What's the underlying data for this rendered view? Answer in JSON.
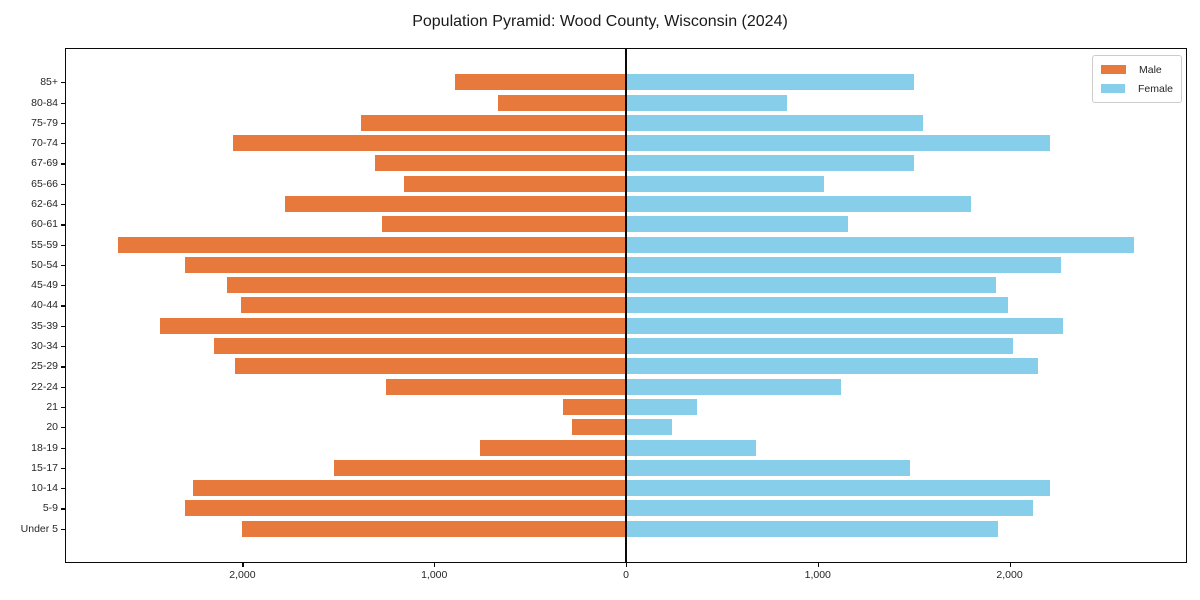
{
  "title": "Population Pyramid: Wood County, Wisconsin (2024)",
  "legend": {
    "male_label": "Male",
    "female_label": "Female"
  },
  "colors": {
    "male": "#e8793c",
    "female": "#87ceeb",
    "axis": "#0a0a0a",
    "text": "#262626"
  },
  "x_axis": {
    "ticks": [
      {
        "value": -2000,
        "label": "2,000"
      },
      {
        "value": -1000,
        "label": "1,000"
      },
      {
        "value": 0,
        "label": "0"
      },
      {
        "value": 1000,
        "label": "1,000"
      },
      {
        "value": 2000,
        "label": "2,000"
      }
    ]
  },
  "chart_data": {
    "type": "bar",
    "orientation": "horizontal_pyramid",
    "title": "Population Pyramid: Wood County, Wisconsin (2024)",
    "categories": [
      "85+",
      "80-84",
      "75-79",
      "70-74",
      "67-69",
      "65-66",
      "62-64",
      "60-61",
      "55-59",
      "50-54",
      "45-49",
      "40-44",
      "35-39",
      "30-34",
      "25-29",
      "22-24",
      "21",
      "20",
      "18-19",
      "15-17",
      "10-14",
      "5-9",
      "Under 5"
    ],
    "series": [
      {
        "name": "Male",
        "side": "left",
        "values": [
          890,
          670,
          1380,
          2050,
          1310,
          1160,
          1780,
          1270,
          2650,
          2300,
          2080,
          2010,
          2430,
          2150,
          2040,
          1250,
          330,
          280,
          760,
          1520,
          2260,
          2300,
          2000
        ]
      },
      {
        "name": "Female",
        "side": "right",
        "values": [
          1500,
          840,
          1550,
          2210,
          1500,
          1030,
          1800,
          1160,
          2650,
          2270,
          1930,
          1990,
          2280,
          2020,
          2150,
          1120,
          370,
          240,
          680,
          1480,
          2210,
          2120,
          1940
        ]
      }
    ],
    "xlim": [
      -2920,
      2920
    ],
    "grid": false,
    "legend_position": "upper_right",
    "xlabel": "",
    "ylabel": ""
  }
}
